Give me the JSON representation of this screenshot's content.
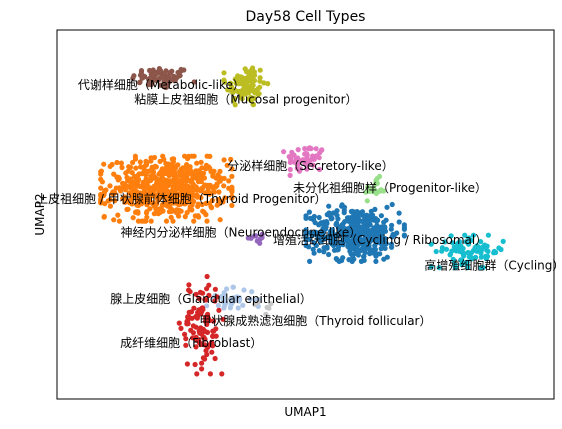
{
  "chart_data": {
    "type": "scatter",
    "title": "Day58 Cell Types",
    "xlabel": "UMAP1",
    "ylabel": "UMAP2",
    "xlim": [
      0,
      100
    ],
    "ylim": [
      0,
      100
    ],
    "grid": false,
    "legend": "on-data",
    "clusters": [
      {
        "label": "代谢样细胞（Metabolic-like）",
        "color": "#8c564b",
        "center": [
          21,
          87
        ],
        "spread": [
          6,
          3
        ],
        "count": 70,
        "label_pos": [
          21,
          85
        ]
      },
      {
        "label": "粘膜上皮祖细胞（Mucosal progenitor）",
        "color": "#bcbd22",
        "center": [
          38,
          85
        ],
        "spread": [
          4,
          6
        ],
        "count": 90,
        "label_pos": [
          38,
          81
        ]
      },
      {
        "label": "分泌样细胞（Secretory-like）",
        "color": "#e377c2",
        "center": [
          50,
          65
        ],
        "spread": [
          4,
          4
        ],
        "count": 50,
        "label_pos": [
          51,
          63
        ]
      },
      {
        "label": "未分化祖细胞样（Progenitor-like）",
        "color": "#98df8a",
        "center": [
          64,
          57
        ],
        "spread": [
          2,
          3
        ],
        "count": 20,
        "label_pos": [
          67,
          57
        ]
      },
      {
        "label": "上皮祖细胞 / 甲状腺前体细胞（Thyroid Progenitor）",
        "color": "#ff7f0e",
        "center": [
          22,
          57
        ],
        "spread": [
          12,
          8
        ],
        "count": 600,
        "label_pos": [
          25,
          54
        ]
      },
      {
        "label": "神经内分泌样细胞（Neuroendocrine-like）",
        "color": "#9467bd",
        "center": [
          40,
          44
        ],
        "spread": [
          3,
          2
        ],
        "count": 10,
        "label_pos": [
          37,
          45
        ]
      },
      {
        "label": "增殖活跃细胞（Cycling / Ribosomal）",
        "color": "#1f77b4",
        "center": [
          60,
          45
        ],
        "spread": [
          9,
          7
        ],
        "count": 420,
        "label_pos": [
          65,
          43
        ]
      },
      {
        "label": "高增殖细胞群（Cycling）",
        "color": "#17becf",
        "center": [
          83,
          40
        ],
        "spread": [
          7,
          4
        ],
        "count": 80,
        "label_pos": [
          88,
          36
        ]
      },
      {
        "label": "腺上皮细胞（Glandular epithelial）",
        "color": "#aec7e8",
        "center": [
          35,
          27
        ],
        "spread": [
          5,
          3
        ],
        "count": 40,
        "label_pos": [
          31,
          27
        ]
      },
      {
        "label": "甲状腺成熟滤泡细胞（Thyroid follicular）",
        "color": "#c7c7c7",
        "center": [
          42,
          25
        ],
        "spread": [
          2,
          2
        ],
        "count": 6,
        "label_pos": [
          52,
          21
        ]
      },
      {
        "label": "成纤维细胞（Fibroblast）",
        "color": "#d62728",
        "center": [
          29,
          20
        ],
        "spread": [
          4,
          12
        ],
        "count": 110,
        "label_pos": [
          27,
          15
        ]
      }
    ]
  }
}
